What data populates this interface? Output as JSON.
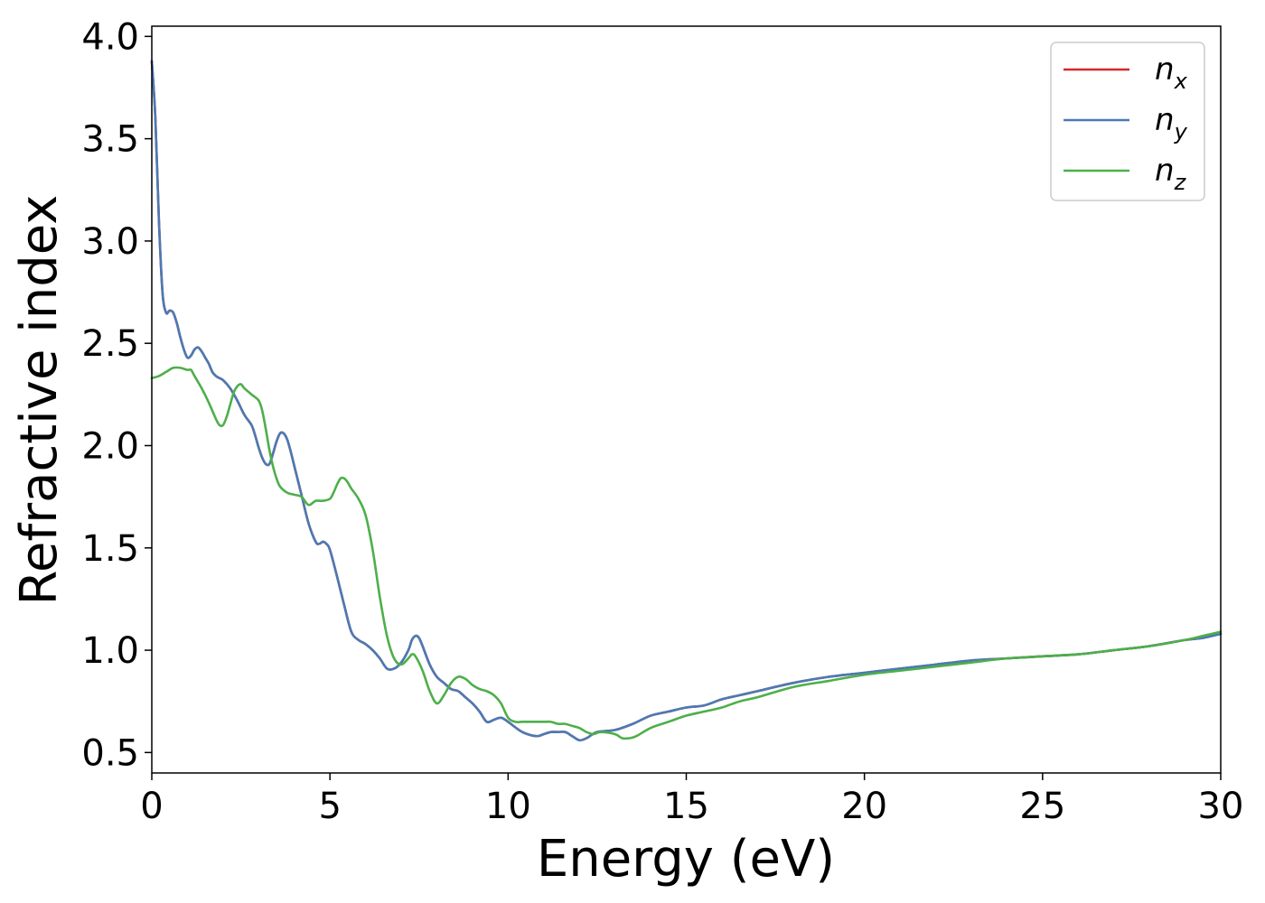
{
  "chart_data": {
    "type": "line",
    "xlabel": "Energy (eV)",
    "ylabel": "Refractive index",
    "xlim": [
      0,
      30
    ],
    "ylim": [
      0.4,
      4.05
    ],
    "xticks": [
      0,
      5,
      10,
      15,
      20,
      25,
      30
    ],
    "xtick_labels": [
      "0",
      "5",
      "10",
      "15",
      "20",
      "25",
      "30"
    ],
    "yticks": [
      0.5,
      1.0,
      1.5,
      2.0,
      2.5,
      3.0,
      3.5,
      4.0
    ],
    "ytick_labels": [
      "0.5",
      "1.0",
      "1.5",
      "2.0",
      "2.5",
      "3.0",
      "3.5",
      "4.0"
    ],
    "grid": false,
    "legend_position": "top-right",
    "series": [
      {
        "name": "n",
        "subscript": "x",
        "color": "#d62728",
        "x": [
          0,
          0.1,
          0.2,
          0.3,
          0.4,
          0.5,
          0.6,
          0.7,
          0.8,
          0.9,
          1.0,
          1.1,
          1.2,
          1.3,
          1.4,
          1.5,
          1.6,
          1.7,
          1.8,
          1.9,
          2.0,
          2.2,
          2.4,
          2.6,
          2.8,
          2.9,
          3.0,
          3.1,
          3.2,
          3.3,
          3.4,
          3.5,
          3.6,
          3.7,
          3.8,
          3.9,
          4.0,
          4.2,
          4.4,
          4.6,
          4.7,
          4.8,
          4.9,
          5.0,
          5.2,
          5.4,
          5.6,
          5.8,
          6.0,
          6.2,
          6.4,
          6.6,
          6.8,
          7.0,
          7.2,
          7.3,
          7.4,
          7.5,
          7.6,
          7.8,
          8.0,
          8.2,
          8.4,
          8.6,
          8.8,
          9.0,
          9.2,
          9.4,
          9.6,
          9.8,
          10.0,
          10.4,
          10.8,
          11.0,
          11.2,
          11.4,
          11.6,
          11.8,
          12.0,
          12.2,
          12.5,
          13.0,
          13.5,
          14.0,
          14.5,
          15.0,
          15.5,
          16.0,
          16.5,
          17.0,
          18.0,
          19.0,
          20.0,
          21.0,
          22.0,
          23.0,
          24.0,
          25.0,
          26.0,
          27.0,
          28.0,
          29.0,
          29.5,
          30.0
        ],
        "y": [
          3.88,
          3.6,
          3.1,
          2.75,
          2.65,
          2.66,
          2.65,
          2.6,
          2.53,
          2.47,
          2.43,
          2.44,
          2.47,
          2.48,
          2.46,
          2.43,
          2.4,
          2.36,
          2.34,
          2.33,
          2.32,
          2.28,
          2.22,
          2.15,
          2.1,
          2.05,
          1.99,
          1.94,
          1.91,
          1.91,
          1.96,
          2.02,
          2.06,
          2.06,
          2.03,
          1.97,
          1.9,
          1.76,
          1.62,
          1.53,
          1.52,
          1.53,
          1.52,
          1.49,
          1.36,
          1.22,
          1.09,
          1.05,
          1.03,
          1.0,
          0.96,
          0.91,
          0.91,
          0.94,
          1.0,
          1.05,
          1.07,
          1.06,
          1.02,
          0.93,
          0.87,
          0.84,
          0.81,
          0.8,
          0.77,
          0.74,
          0.7,
          0.65,
          0.66,
          0.67,
          0.65,
          0.6,
          0.58,
          0.59,
          0.6,
          0.6,
          0.6,
          0.58,
          0.56,
          0.57,
          0.6,
          0.61,
          0.64,
          0.68,
          0.7,
          0.72,
          0.73,
          0.76,
          0.78,
          0.8,
          0.84,
          0.87,
          0.89,
          0.91,
          0.93,
          0.95,
          0.96,
          0.97,
          0.98,
          1.0,
          1.02,
          1.05,
          1.06,
          1.08
        ]
      },
      {
        "name": "n",
        "subscript": "y",
        "color": "#4a7ab5",
        "x": [
          0,
          0.1,
          0.2,
          0.3,
          0.4,
          0.5,
          0.6,
          0.7,
          0.8,
          0.9,
          1.0,
          1.1,
          1.2,
          1.3,
          1.4,
          1.5,
          1.6,
          1.7,
          1.8,
          1.9,
          2.0,
          2.2,
          2.4,
          2.6,
          2.8,
          2.9,
          3.0,
          3.1,
          3.2,
          3.3,
          3.4,
          3.5,
          3.6,
          3.7,
          3.8,
          3.9,
          4.0,
          4.2,
          4.4,
          4.6,
          4.7,
          4.8,
          4.9,
          5.0,
          5.2,
          5.4,
          5.6,
          5.8,
          6.0,
          6.2,
          6.4,
          6.6,
          6.8,
          7.0,
          7.2,
          7.3,
          7.4,
          7.5,
          7.6,
          7.8,
          8.0,
          8.2,
          8.4,
          8.6,
          8.8,
          9.0,
          9.2,
          9.4,
          9.6,
          9.8,
          10.0,
          10.4,
          10.8,
          11.0,
          11.2,
          11.4,
          11.6,
          11.8,
          12.0,
          12.2,
          12.5,
          13.0,
          13.5,
          14.0,
          14.5,
          15.0,
          15.5,
          16.0,
          16.5,
          17.0,
          18.0,
          19.0,
          20.0,
          21.0,
          22.0,
          23.0,
          24.0,
          25.0,
          26.0,
          27.0,
          28.0,
          29.0,
          29.5,
          30.0
        ],
        "y": [
          3.88,
          3.6,
          3.1,
          2.75,
          2.65,
          2.66,
          2.65,
          2.6,
          2.53,
          2.47,
          2.43,
          2.44,
          2.47,
          2.48,
          2.46,
          2.43,
          2.4,
          2.36,
          2.34,
          2.33,
          2.32,
          2.28,
          2.22,
          2.15,
          2.1,
          2.05,
          1.99,
          1.94,
          1.91,
          1.91,
          1.96,
          2.02,
          2.06,
          2.06,
          2.03,
          1.97,
          1.9,
          1.76,
          1.62,
          1.53,
          1.52,
          1.53,
          1.52,
          1.49,
          1.36,
          1.22,
          1.09,
          1.05,
          1.03,
          1.0,
          0.96,
          0.91,
          0.91,
          0.94,
          1.0,
          1.05,
          1.07,
          1.06,
          1.02,
          0.93,
          0.87,
          0.84,
          0.81,
          0.8,
          0.77,
          0.74,
          0.7,
          0.65,
          0.66,
          0.67,
          0.65,
          0.6,
          0.58,
          0.59,
          0.6,
          0.6,
          0.6,
          0.58,
          0.56,
          0.57,
          0.6,
          0.61,
          0.64,
          0.68,
          0.7,
          0.72,
          0.73,
          0.76,
          0.78,
          0.8,
          0.84,
          0.87,
          0.89,
          0.91,
          0.93,
          0.95,
          0.96,
          0.97,
          0.98,
          1.0,
          1.02,
          1.05,
          1.06,
          1.08
        ]
      },
      {
        "name": "n",
        "subscript": "z",
        "color": "#4daf4a",
        "x": [
          0,
          0.2,
          0.4,
          0.6,
          0.8,
          1.0,
          1.1,
          1.2,
          1.4,
          1.6,
          1.8,
          1.9,
          2.0,
          2.1,
          2.2,
          2.3,
          2.4,
          2.5,
          2.6,
          2.8,
          3.0,
          3.1,
          3.2,
          3.3,
          3.4,
          3.5,
          3.6,
          3.8,
          4.0,
          4.2,
          4.4,
          4.6,
          4.8,
          5.0,
          5.1,
          5.2,
          5.3,
          5.4,
          5.5,
          5.6,
          5.8,
          6.0,
          6.2,
          6.4,
          6.6,
          6.8,
          7.0,
          7.2,
          7.3,
          7.4,
          7.6,
          7.8,
          8.0,
          8.2,
          8.4,
          8.6,
          8.8,
          9.0,
          9.2,
          9.4,
          9.6,
          9.8,
          10.0,
          10.2,
          10.4,
          10.8,
          11.0,
          11.2,
          11.4,
          11.6,
          11.8,
          12.0,
          12.2,
          12.4,
          12.6,
          13.0,
          13.2,
          13.4,
          13.6,
          14.0,
          14.5,
          15.0,
          15.5,
          16.0,
          16.5,
          17.0,
          18.0,
          19.0,
          20.0,
          21.0,
          22.0,
          23.0,
          24.0,
          25.0,
          26.0,
          27.0,
          28.0,
          29.0,
          29.5,
          30.0
        ],
        "y": [
          2.33,
          2.34,
          2.36,
          2.38,
          2.38,
          2.37,
          2.37,
          2.34,
          2.28,
          2.21,
          2.13,
          2.1,
          2.1,
          2.14,
          2.2,
          2.26,
          2.29,
          2.3,
          2.28,
          2.25,
          2.22,
          2.17,
          2.08,
          1.98,
          1.9,
          1.84,
          1.8,
          1.77,
          1.76,
          1.75,
          1.71,
          1.73,
          1.73,
          1.74,
          1.77,
          1.81,
          1.84,
          1.84,
          1.82,
          1.79,
          1.74,
          1.66,
          1.49,
          1.26,
          1.07,
          0.96,
          0.93,
          0.96,
          0.98,
          0.97,
          0.9,
          0.8,
          0.74,
          0.78,
          0.84,
          0.87,
          0.86,
          0.83,
          0.81,
          0.8,
          0.78,
          0.74,
          0.67,
          0.65,
          0.65,
          0.65,
          0.65,
          0.65,
          0.64,
          0.64,
          0.63,
          0.62,
          0.6,
          0.59,
          0.6,
          0.59,
          0.57,
          0.57,
          0.58,
          0.62,
          0.65,
          0.68,
          0.7,
          0.72,
          0.75,
          0.77,
          0.82,
          0.85,
          0.88,
          0.9,
          0.92,
          0.94,
          0.96,
          0.97,
          0.98,
          1.0,
          1.02,
          1.05,
          1.07,
          1.09
        ]
      }
    ]
  }
}
